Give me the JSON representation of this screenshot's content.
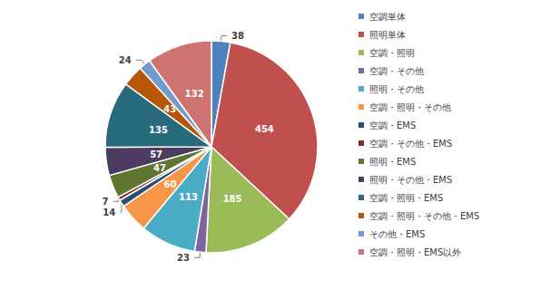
{
  "chart_data": {
    "type": "pie",
    "categories": [
      "空調単体",
      "照明単体",
      "空調・照明",
      "空調・その他",
      "照明・その他",
      "空調・照明・その他",
      "空調・EMS",
      "空調・その他・EMS",
      "照明・EMS",
      "照明・その他・EMS",
      "空調・照明・EMS",
      "空調・照明・その他・EMS",
      "その他・EMS",
      "空調・照明・EMS以外"
    ],
    "values": [
      38,
      454,
      185,
      23,
      113,
      60,
      14,
      7,
      47,
      57,
      135,
      43,
      24,
      132
    ],
    "colors": [
      "#4f81bd",
      "#c0504d",
      "#9bbb59",
      "#8064a2",
      "#4bacc6",
      "#f79646",
      "#2c4d75",
      "#772c2a",
      "#5f7530",
      "#4d3b62",
      "#276a7c",
      "#b65708",
      "#729aca",
      "#cd7371"
    ],
    "data_labels": true,
    "legend": "right"
  }
}
